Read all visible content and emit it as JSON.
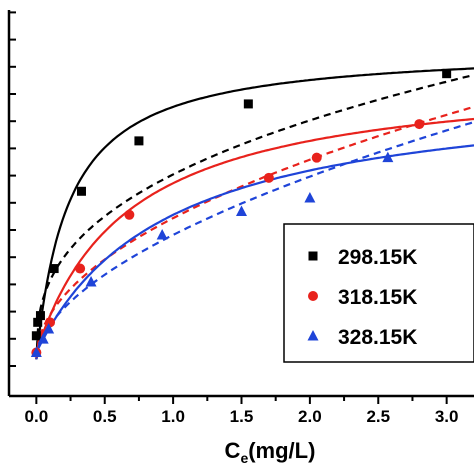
{
  "chart_data": {
    "type": "scatter",
    "xlabel_main": "C",
    "xlabel_sub": "e",
    "xlabel_unit": "(mg/L)",
    "ylabel": "",
    "xlim": [
      -0.2,
      3.2
    ],
    "ylim": [
      0,
      1
    ],
    "x_ticks": [
      0.0,
      0.5,
      1.0,
      1.5,
      2.0,
      2.5,
      3.0
    ],
    "x_tick_labels": [
      "0.0",
      "0.5",
      "1.0",
      "1.5",
      "2.0",
      "2.5",
      "3.0"
    ],
    "legend_position": "center-right",
    "series": [
      {
        "name": "298.15K",
        "marker": "square",
        "color": "#000000",
        "points": [
          {
            "x": 0.0,
            "y": 0.07
          },
          {
            "x": 0.01,
            "y": 0.11
          },
          {
            "x": 0.03,
            "y": 0.13
          },
          {
            "x": 0.13,
            "y": 0.27
          },
          {
            "x": 0.33,
            "y": 0.5
          },
          {
            "x": 0.75,
            "y": 0.65
          },
          {
            "x": 1.55,
            "y": 0.76
          },
          {
            "x": 3.0,
            "y": 0.85
          }
        ],
        "fit_solid": {
          "type": "langmuir",
          "qmax": 0.93,
          "K": 4.2,
          "base": 0.0
        },
        "fit_dashed": {
          "type": "freundlich",
          "Kf": 0.55,
          "n": 2.7,
          "base": 0.0
        }
      },
      {
        "name": "318.15K",
        "marker": "circle",
        "color": "#e8221c",
        "points": [
          {
            "x": 0.0,
            "y": 0.02
          },
          {
            "x": 0.1,
            "y": 0.11
          },
          {
            "x": 0.32,
            "y": 0.27
          },
          {
            "x": 0.68,
            "y": 0.43
          },
          {
            "x": 1.7,
            "y": 0.54
          },
          {
            "x": 2.05,
            "y": 0.6
          },
          {
            "x": 2.8,
            "y": 0.7
          }
        ],
        "fit_solid": {
          "type": "langmuir",
          "qmax": 0.84,
          "K": 1.5,
          "base": 0.02
        },
        "fit_dashed": {
          "type": "freundlich",
          "Kf": 0.42,
          "n": 2.0,
          "base": 0.0
        }
      },
      {
        "name": "328.15K",
        "marker": "triangle",
        "color": "#1f44d8",
        "points": [
          {
            "x": 0.0,
            "y": 0.02
          },
          {
            "x": 0.05,
            "y": 0.06
          },
          {
            "x": 0.09,
            "y": 0.09
          },
          {
            "x": 0.4,
            "y": 0.23
          },
          {
            "x": 0.92,
            "y": 0.37
          },
          {
            "x": 1.5,
            "y": 0.44
          },
          {
            "x": 2.0,
            "y": 0.48
          },
          {
            "x": 2.57,
            "y": 0.6
          }
        ],
        "fit_solid": {
          "type": "langmuir",
          "qmax": 0.8,
          "K": 1.05,
          "base": 0.02
        },
        "fit_dashed": {
          "type": "freundlich",
          "Kf": 0.37,
          "n": 1.8,
          "base": 0.0
        }
      }
    ]
  }
}
